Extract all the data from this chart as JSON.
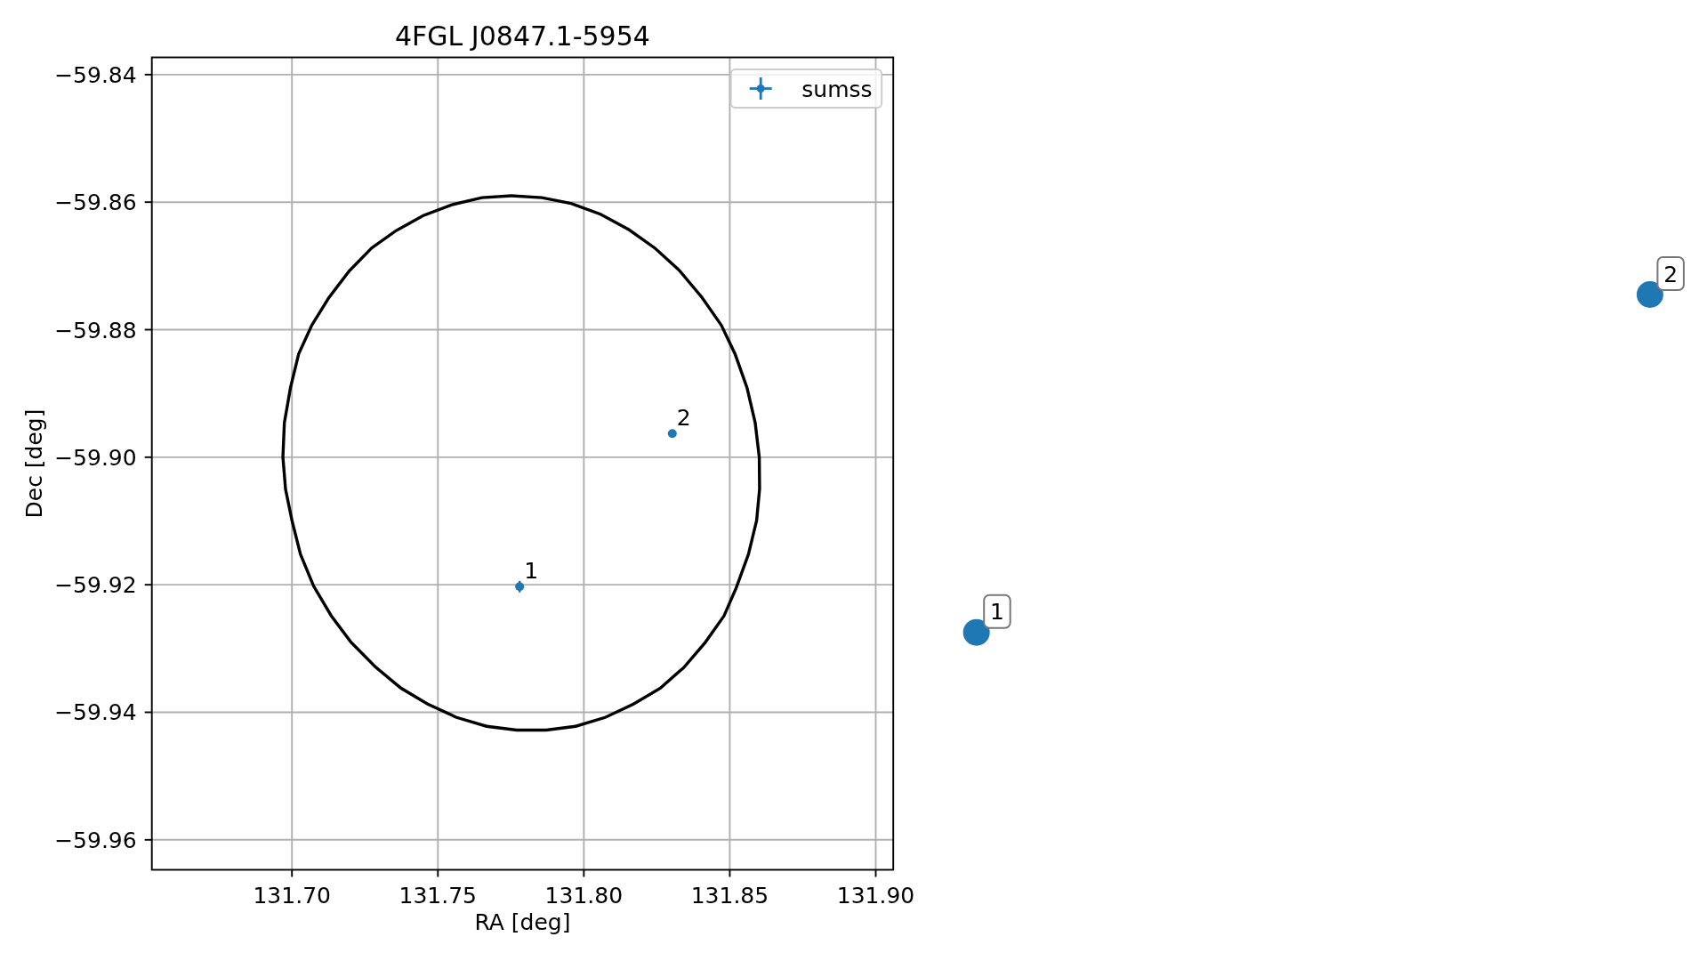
{
  "chart_data": {
    "type": "scatter",
    "title": "4FGL J0847.1-5954",
    "xlabel": "RA [deg]",
    "ylabel": "Dec [deg]",
    "xlim": [
      131.652,
      131.906
    ],
    "xticks": [
      {
        "value": 131.7,
        "label": "131.70"
      },
      {
        "value": 131.75,
        "label": "131.75"
      },
      {
        "value": 131.8,
        "label": "131.80"
      },
      {
        "value": 131.85,
        "label": "131.85"
      },
      {
        "value": 131.9,
        "label": "131.90"
      }
    ],
    "ylim": [
      -59.9647,
      -59.8373
    ],
    "yticks": [
      {
        "value": -59.96,
        "label": "−59.96"
      },
      {
        "value": -59.94,
        "label": "−59.94"
      },
      {
        "value": -59.92,
        "label": "−59.92"
      },
      {
        "value": -59.9,
        "label": "−59.90"
      },
      {
        "value": -59.88,
        "label": "−59.88"
      },
      {
        "value": -59.86,
        "label": "−59.86"
      },
      {
        "value": -59.84,
        "label": "−59.84"
      }
    ],
    "grid": true,
    "legend": "top right",
    "series": [
      {
        "name": "sumss",
        "color": "#1f77b4",
        "marker": "circle",
        "x": [
          131.778,
          131.8303
        ],
        "values": [
          -59.9203,
          -59.8963
        ],
        "errors": [
          0.0009,
          null
        ]
      }
    ],
    "annotations": [
      {
        "text": "1",
        "x": 131.778,
        "y": -59.9203
      },
      {
        "text": "2",
        "x": 131.8303,
        "y": -59.8963
      },
      "1",
      "2"
    ]
  }
}
